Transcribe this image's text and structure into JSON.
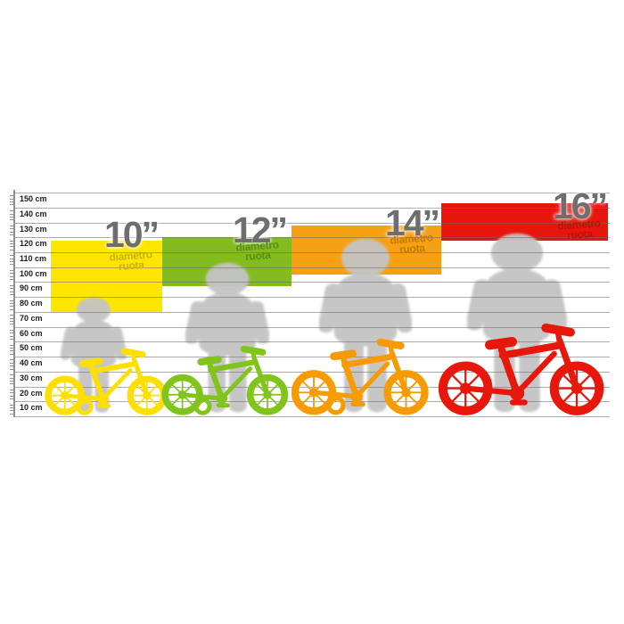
{
  "scale": {
    "unit_suffix": "cm",
    "tick_labels": [
      "150 cm",
      "140 cm",
      "130 cm",
      "120 cm",
      "110 cm",
      "100 cm",
      "90 cm",
      "80 cm",
      "70 cm",
      "60 cm",
      "50 cm",
      "40 cm",
      "30 cm",
      "20 cm",
      "10 cm"
    ]
  },
  "sizes": [
    {
      "label": "10”",
      "sublabel_line1": "diametro",
      "sublabel_line2": "ruota",
      "block_color": "#ffe500",
      "bike_color": "#ffdf00",
      "sublabel_color": "#c6b400",
      "range_cm": [
        70,
        118
      ]
    },
    {
      "label": "12”",
      "sublabel_line1": "diametro",
      "sublabel_line2": "ruota",
      "block_color": "#84bb1e",
      "bike_color": "#80c41c",
      "sublabel_color": "#569110",
      "range_cm": [
        87,
        120
      ]
    },
    {
      "label": "14”",
      "sublabel_line1": "diametro",
      "sublabel_line2": "ruota",
      "block_color": "#f6a114",
      "bike_color": "#f79b04",
      "sublabel_color": "#c07a00",
      "range_cm": [
        95,
        128
      ]
    },
    {
      "label": "16”",
      "sublabel_line1": "diametro",
      "sublabel_line2": "ruota",
      "block_color": "#e8150c",
      "bike_color": "#e8170c",
      "sublabel_color": "#b5150c",
      "range_cm": [
        118,
        143
      ]
    }
  ],
  "figures": {
    "child_silhouette_color": "#c4c4c4",
    "grid_color": "#696969"
  },
  "chart_data": {
    "type": "bar",
    "title": "",
    "xlabel": "",
    "ylabel": "cm",
    "orientation": "horizontal-range-blocks",
    "axis_ticks_cm": [
      10,
      20,
      30,
      40,
      50,
      60,
      70,
      80,
      90,
      100,
      110,
      120,
      130,
      140,
      150
    ],
    "ylim": [
      0,
      155
    ],
    "grid": true,
    "legend": false,
    "series": [
      {
        "name": "10” diametro ruota",
        "child_height_range_cm": [
          70,
          118
        ],
        "color": "#ffe500"
      },
      {
        "name": "12” diametro ruota",
        "child_height_range_cm": [
          87,
          120
        ],
        "color": "#84bb1e"
      },
      {
        "name": "14” diametro ruota",
        "child_height_range_cm": [
          95,
          128
        ],
        "color": "#f6a114"
      },
      {
        "name": "16” diametro ruota",
        "child_height_range_cm": [
          118,
          143
        ],
        "color": "#e8150c"
      }
    ]
  }
}
